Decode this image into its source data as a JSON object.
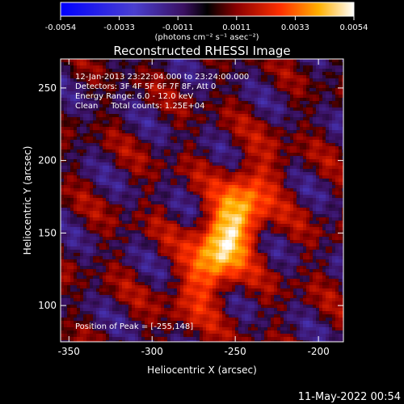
{
  "colorbar": {
    "ticks": [
      "-0.0054",
      "-0.0033",
      "-0.0011",
      "0.0011",
      "0.0033",
      "0.0054"
    ],
    "unit_label": "(photons cm⁻² s⁻¹ asec⁻²)",
    "range": [
      -0.0054,
      0.0054
    ]
  },
  "chart_data": {
    "type": "heatmap",
    "title": "Reconstructed RHESSI Image",
    "xlabel": "Heliocentric X (arcsec)",
    "ylabel": "Heliocentric Y (arcsec)",
    "xlim": [
      -355,
      -185
    ],
    "ylim": [
      75,
      270
    ],
    "x_ticks": [
      -350,
      -300,
      -250,
      -200
    ],
    "y_ticks": [
      100,
      150,
      200,
      250
    ],
    "peak": {
      "x": -255,
      "y": 148
    },
    "annotations": [
      "12-Jan-2013 23:22:04.000 to 23:24:00.000",
      "Detectors: 3F 4F 5F 6F 7F 8F, Att 0",
      "Energy Range: 6.0 - 12.0 keV",
      "Clean     Total counts: 1.25E+04"
    ],
    "peak_label": "Position of Peak = [-255,148]"
  },
  "footer_timestamp": "11-May-2022 00:54"
}
